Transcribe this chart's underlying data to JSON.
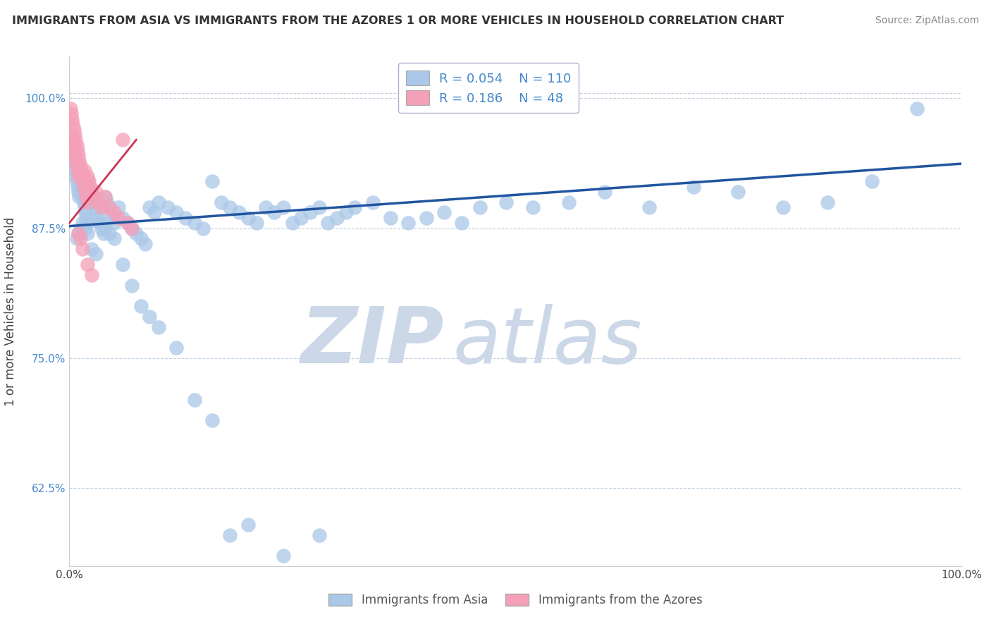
{
  "title": "IMMIGRANTS FROM ASIA VS IMMIGRANTS FROM THE AZORES 1 OR MORE VEHICLES IN HOUSEHOLD CORRELATION CHART",
  "source": "Source: ZipAtlas.com",
  "ylabel": "1 or more Vehicles in Household",
  "xlim": [
    0.0,
    1.0
  ],
  "ylim": [
    0.55,
    1.04
  ],
  "ytick_positions": [
    0.625,
    0.75,
    0.875,
    1.0
  ],
  "ytick_labels": [
    "62.5%",
    "75.0%",
    "87.5%",
    "100.0%"
  ],
  "legend_label_asia": "Immigrants from Asia",
  "legend_label_azores": "Immigrants from the Azores",
  "R_asia": 0.054,
  "N_asia": 110,
  "R_azores": 0.186,
  "N_azores": 48,
  "color_asia": "#aac8e8",
  "color_azores": "#f4a0b8",
  "line_color_asia": "#2255a0",
  "line_color_azores": "#cc3355",
  "watermark_zip": "ZIP",
  "watermark_atlas": "atlas",
  "watermark_color": "#ccd8e8",
  "asia_x": [
    0.002,
    0.003,
    0.004,
    0.005,
    0.006,
    0.007,
    0.008,
    0.009,
    0.01,
    0.011,
    0.012,
    0.013,
    0.014,
    0.015,
    0.016,
    0.017,
    0.018,
    0.019,
    0.02,
    0.021,
    0.022,
    0.024,
    0.025,
    0.026,
    0.028,
    0.03,
    0.032,
    0.034,
    0.036,
    0.038,
    0.04,
    0.042,
    0.044,
    0.046,
    0.048,
    0.05,
    0.055,
    0.06,
    0.065,
    0.07,
    0.075,
    0.08,
    0.085,
    0.09,
    0.095,
    0.1,
    0.11,
    0.12,
    0.13,
    0.14,
    0.15,
    0.16,
    0.17,
    0.18,
    0.19,
    0.2,
    0.21,
    0.22,
    0.23,
    0.24,
    0.25,
    0.26,
    0.27,
    0.28,
    0.29,
    0.3,
    0.31,
    0.32,
    0.34,
    0.36,
    0.38,
    0.4,
    0.42,
    0.44,
    0.46,
    0.49,
    0.52,
    0.56,
    0.6,
    0.65,
    0.7,
    0.75,
    0.8,
    0.85,
    0.9,
    0.95,
    0.008,
    0.01,
    0.012,
    0.015,
    0.018,
    0.02,
    0.025,
    0.03,
    0.035,
    0.04,
    0.045,
    0.05,
    0.06,
    0.07,
    0.08,
    0.09,
    0.1,
    0.12,
    0.14,
    0.16,
    0.18,
    0.2,
    0.24,
    0.28
  ],
  "asia_y": [
    0.96,
    0.945,
    0.94,
    0.935,
    0.93,
    0.925,
    0.92,
    0.915,
    0.91,
    0.905,
    0.92,
    0.915,
    0.91,
    0.905,
    0.9,
    0.895,
    0.89,
    0.885,
    0.88,
    0.92,
    0.915,
    0.91,
    0.905,
    0.9,
    0.895,
    0.89,
    0.885,
    0.88,
    0.875,
    0.87,
    0.905,
    0.9,
    0.895,
    0.89,
    0.885,
    0.88,
    0.895,
    0.885,
    0.88,
    0.875,
    0.87,
    0.865,
    0.86,
    0.895,
    0.89,
    0.9,
    0.895,
    0.89,
    0.885,
    0.88,
    0.875,
    0.92,
    0.9,
    0.895,
    0.89,
    0.885,
    0.88,
    0.895,
    0.89,
    0.895,
    0.88,
    0.885,
    0.89,
    0.895,
    0.88,
    0.885,
    0.89,
    0.895,
    0.9,
    0.885,
    0.88,
    0.885,
    0.89,
    0.88,
    0.895,
    0.9,
    0.895,
    0.9,
    0.91,
    0.895,
    0.915,
    0.91,
    0.895,
    0.9,
    0.92,
    0.99,
    0.865,
    0.87,
    0.875,
    0.88,
    0.875,
    0.87,
    0.855,
    0.85,
    0.88,
    0.875,
    0.87,
    0.865,
    0.84,
    0.82,
    0.8,
    0.79,
    0.78,
    0.76,
    0.71,
    0.69,
    0.58,
    0.59,
    0.56,
    0.58
  ],
  "azores_x": [
    0.001,
    0.002,
    0.003,
    0.003,
    0.004,
    0.004,
    0.005,
    0.005,
    0.006,
    0.006,
    0.007,
    0.007,
    0.008,
    0.008,
    0.009,
    0.009,
    0.01,
    0.01,
    0.011,
    0.012,
    0.013,
    0.014,
    0.015,
    0.016,
    0.017,
    0.018,
    0.019,
    0.02,
    0.021,
    0.022,
    0.023,
    0.025,
    0.027,
    0.03,
    0.033,
    0.036,
    0.04,
    0.045,
    0.05,
    0.055,
    0.06,
    0.065,
    0.07,
    0.01,
    0.012,
    0.015,
    0.02,
    0.025
  ],
  "azores_y": [
    0.99,
    0.985,
    0.98,
    0.96,
    0.975,
    0.955,
    0.97,
    0.95,
    0.965,
    0.945,
    0.96,
    0.94,
    0.955,
    0.935,
    0.95,
    0.93,
    0.945,
    0.925,
    0.94,
    0.935,
    0.93,
    0.925,
    0.92,
    0.915,
    0.93,
    0.91,
    0.905,
    0.925,
    0.9,
    0.92,
    0.915,
    0.91,
    0.905,
    0.91,
    0.9,
    0.895,
    0.905,
    0.895,
    0.89,
    0.885,
    0.96,
    0.88,
    0.875,
    0.87,
    0.865,
    0.855,
    0.84,
    0.83
  ],
  "asia_trendline_x": [
    0.0,
    1.0
  ],
  "asia_trendline_y": [
    0.877,
    0.937
  ],
  "azores_trendline_x": [
    0.0,
    0.075
  ],
  "azores_trendline_y": [
    0.88,
    0.96
  ]
}
